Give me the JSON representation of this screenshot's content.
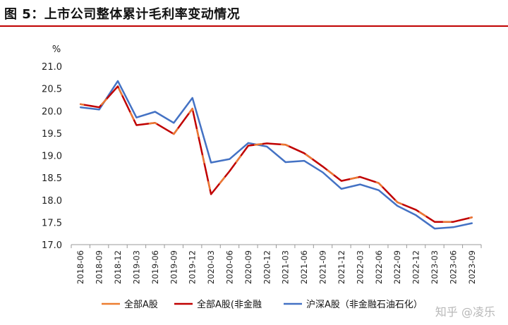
{
  "figure": {
    "title": "图 5：上市公司整体累计毛利率变动情况"
  },
  "watermark": "知乎 @凌乐",
  "colors": {
    "title_rule": "#c00000",
    "all_a": "#ED7D31",
    "nonfin": "#C00000",
    "sh_sz": "#4472C4"
  },
  "chart_data": {
    "type": "line",
    "ylabel": "%",
    "ylim": [
      17.0,
      21.0
    ],
    "yticks": [
      "21.0",
      "20.5",
      "20.0",
      "19.5",
      "19.0",
      "18.5",
      "18.0",
      "17.5",
      "17.0"
    ],
    "categories": [
      "2018-06",
      "2018-09",
      "2018-12",
      "2019-03",
      "2019-06",
      "2019-09",
      "2019-12",
      "2020-03",
      "2020-06",
      "2020-09",
      "2020-12",
      "2021-03",
      "2021-06",
      "2021-09",
      "2021-12",
      "2022-03",
      "2022-06",
      "2022-09",
      "2022-12",
      "2023-03",
      "2023-06",
      "2023-09"
    ],
    "legend_position": "bottom",
    "grid": false,
    "series": [
      {
        "name": "全部A股",
        "color": "#ED7D31",
        "values": [
          20.15,
          20.08,
          20.55,
          19.68,
          19.73,
          19.48,
          20.05,
          18.13,
          18.65,
          19.22,
          19.27,
          19.24,
          19.05,
          18.75,
          18.43,
          18.52,
          18.38,
          17.95,
          17.78,
          17.51,
          17.51,
          17.61
        ]
      },
      {
        "name": "全部A股(非金融",
        "color": "#C00000",
        "values": [
          20.15,
          20.08,
          20.55,
          19.68,
          19.73,
          19.48,
          20.05,
          18.13,
          18.65,
          19.22,
          19.27,
          19.24,
          19.05,
          18.75,
          18.43,
          18.52,
          18.38,
          17.95,
          17.78,
          17.51,
          17.51,
          17.61
        ]
      },
      {
        "name": "沪深A股（非金融石油石化）",
        "color": "#4472C4",
        "values": [
          20.08,
          20.03,
          20.67,
          19.85,
          19.98,
          19.73,
          20.29,
          18.84,
          18.92,
          19.28,
          19.2,
          18.85,
          18.88,
          18.62,
          18.25,
          18.35,
          18.22,
          17.87,
          17.66,
          17.36,
          17.39,
          17.48
        ]
      }
    ]
  }
}
